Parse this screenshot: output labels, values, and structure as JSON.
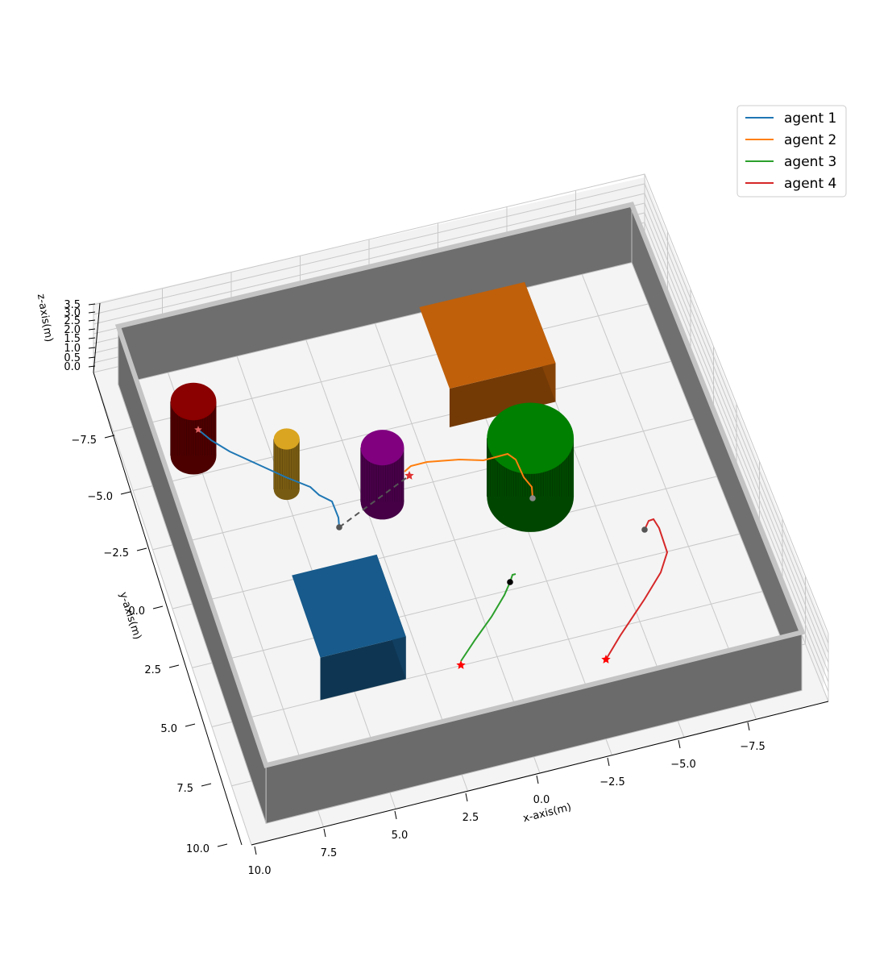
{
  "chart_data": {
    "type": "line",
    "projection": "3d",
    "title": "",
    "xlabel": "x-axis(m)",
    "ylabel": "y-axis(m)",
    "zlabel": "z-axis(m)",
    "xlim": [
      -10,
      10
    ],
    "ylim": [
      -10,
      10
    ],
    "zlim": [
      0,
      3.5
    ],
    "grid": true,
    "legend_position": "top-right",
    "x_ticks": [
      "10.0",
      "7.5",
      "5.0",
      "2.5",
      "0.0",
      "−2.5",
      "−5.0",
      "−7.5"
    ],
    "y_ticks": [
      "−7.5",
      "−5.0",
      "−2.5",
      "0.0",
      "2.5",
      "5.0",
      "7.5",
      "10.0"
    ],
    "z_ticks": [
      "0.0",
      "0.5",
      "1.0",
      "1.5",
      "2.0",
      "2.5",
      "3.0",
      "3.5"
    ],
    "series": [
      {
        "name": "agent 1",
        "color": "#1f77b4"
      },
      {
        "name": "agent 2",
        "color": "#ff7f0e"
      },
      {
        "name": "agent 3",
        "color": "#2ca02c"
      },
      {
        "name": "agent 4",
        "color": "#d62728"
      }
    ],
    "obstacles": [
      {
        "shape": "box",
        "color": "#175a8b"
      },
      {
        "shape": "box",
        "color": "#c0600a"
      },
      {
        "shape": "cylinder",
        "color": "#8b0000"
      },
      {
        "shape": "cylinder",
        "color": "#daa520"
      },
      {
        "shape": "cylinder",
        "color": "#800080"
      },
      {
        "shape": "cylinder",
        "color": "#008000"
      }
    ],
    "wall_color": "#6b6b6b"
  }
}
